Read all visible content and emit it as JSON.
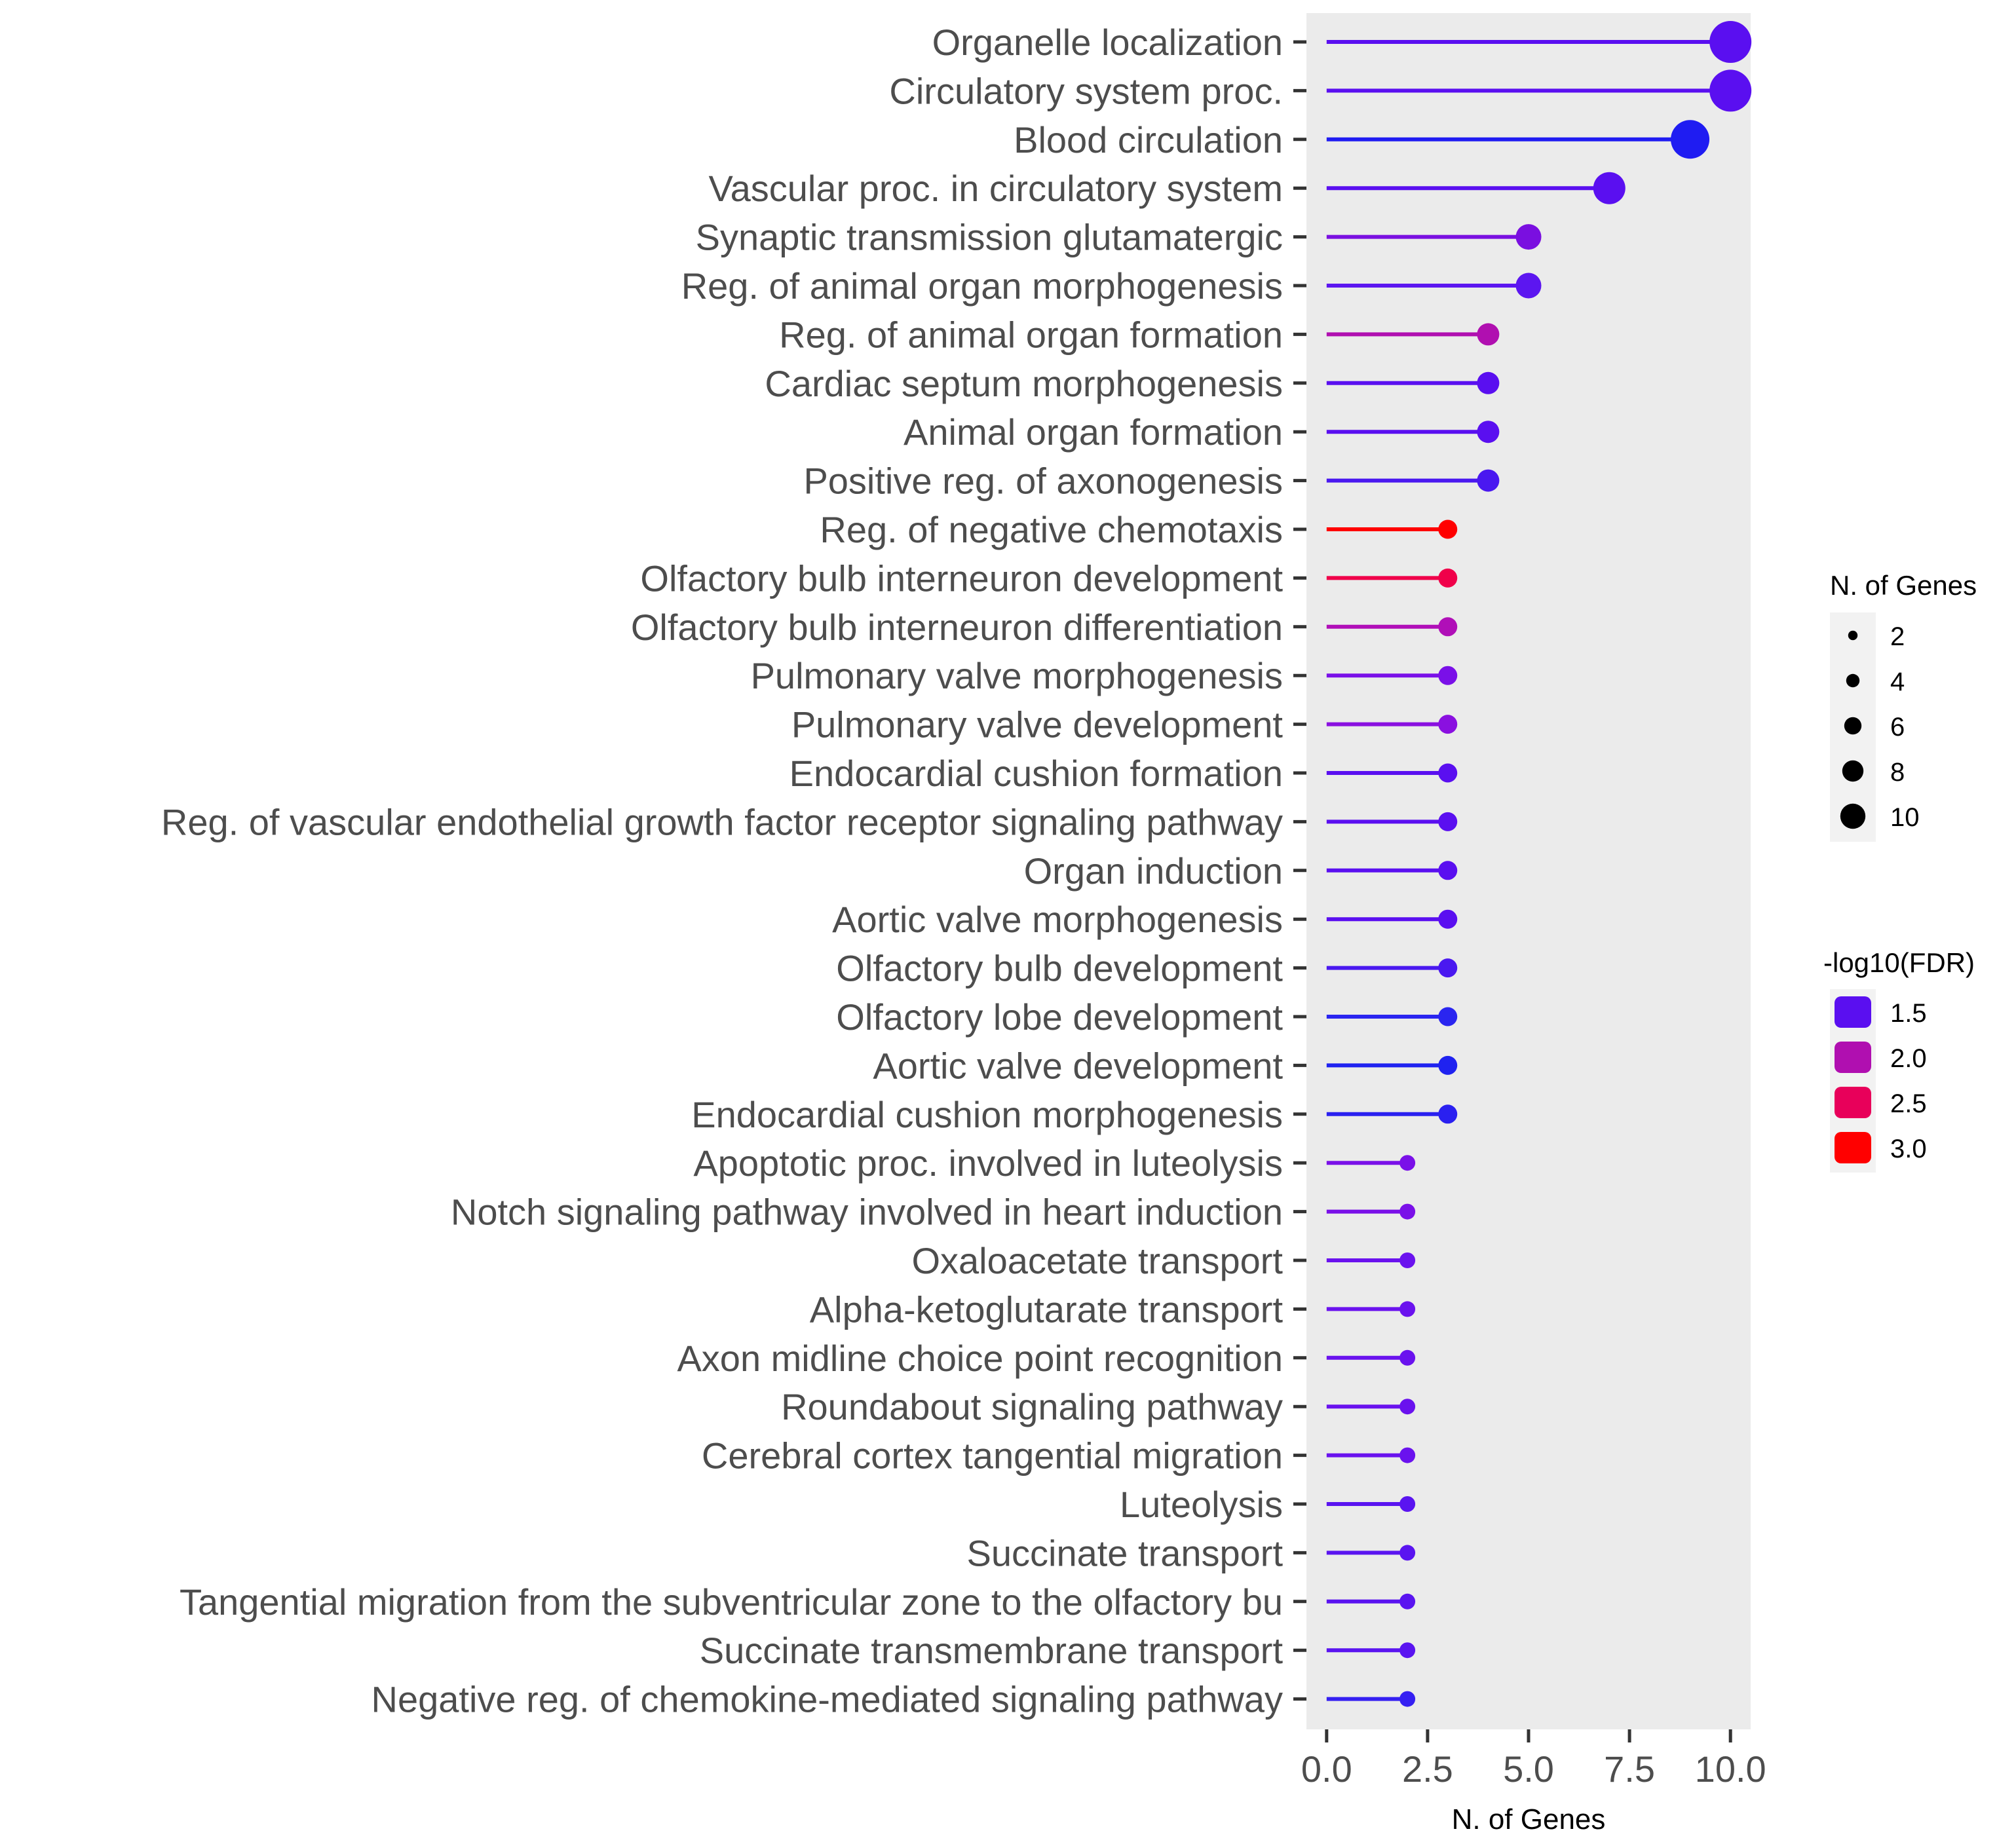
{
  "chart_data": {
    "type": "lollipop",
    "xlabel": "N. of Genes",
    "ylabel": "",
    "xlim": [
      -0.5,
      10.5
    ],
    "xticks": [
      0,
      2.5,
      5,
      7.5,
      10
    ],
    "xtick_labels": [
      "0.0",
      "2.5",
      "5.0",
      "7.5",
      "10.0"
    ],
    "categories": [
      "Organelle localization",
      "Circulatory system proc.",
      "Blood circulation",
      "Vascular proc. in circulatory system",
      "Synaptic transmission glutamatergic",
      "Reg. of animal organ morphogenesis",
      "Reg. of animal organ formation",
      "Cardiac septum morphogenesis",
      "Animal organ formation",
      "Positive reg. of axonogenesis",
      "Reg. of negative chemotaxis",
      "Olfactory bulb interneuron development",
      "Olfactory bulb interneuron differentiation",
      "Pulmonary valve morphogenesis",
      "Pulmonary valve development",
      "Endocardial cushion formation",
      "Reg. of vascular endothelial growth factor receptor signaling pathway",
      "Organ induction",
      "Aortic valve morphogenesis",
      "Olfactory bulb development",
      "Olfactory lobe development",
      "Aortic valve development",
      "Endocardial cushion morphogenesis",
      "Apoptotic proc. involved in luteolysis",
      "Notch signaling pathway involved in heart induction",
      "Oxaloacetate transport",
      "Alpha-ketoglutarate transport",
      "Axon midline choice point recognition",
      "Roundabout signaling pathway",
      "Cerebral cortex tangential migration",
      "Luteolysis",
      "Succinate transport",
      "Tangential migration from the subventricular zone to the olfactory bu",
      "Succinate transmembrane transport",
      "Negative reg. of chemokine-mediated signaling pathway"
    ],
    "values": [
      10,
      10,
      9,
      7,
      5,
      5,
      4,
      4,
      4,
      4,
      3,
      3,
      3,
      3,
      3,
      3,
      3,
      3,
      3,
      3,
      3,
      3,
      3,
      2,
      2,
      2,
      2,
      2,
      2,
      2,
      2,
      2,
      2,
      2,
      2
    ],
    "colors": [
      "#5a0ff0",
      "#5a0ff0",
      "#1f1cf2",
      "#5a0ff0",
      "#7a0fe0",
      "#5c16f0",
      "#b00fb0",
      "#5a0ff0",
      "#5a0ff0",
      "#4a18f0",
      "#ff0000",
      "#f0004a",
      "#b00fb8",
      "#7a10e8",
      "#8a10e0",
      "#5a0ff0",
      "#5a0ff0",
      "#5a0ff0",
      "#5a0ff0",
      "#4a18f0",
      "#2a25f0",
      "#1f22f0",
      "#2a20f0",
      "#7a10e8",
      "#7a10e8",
      "#6a12ee",
      "#6a12ee",
      "#6a12ee",
      "#6a12ee",
      "#6a12ee",
      "#5a14f0",
      "#5a14f0",
      "#5a14f0",
      "#5a14f0",
      "#3520f2"
    ],
    "size_legend": {
      "title": "N. of Genes",
      "values": [
        2,
        4,
        6,
        8,
        10
      ],
      "labels": [
        "2",
        "4",
        "6",
        "8",
        "10"
      ]
    },
    "color_legend": {
      "title": "-log10(FDR)",
      "values": [
        1.5,
        2.0,
        2.5,
        3.0
      ],
      "labels": [
        "1.5",
        "2.0",
        "2.5",
        "3.0"
      ],
      "colors": [
        "#5a0ff0",
        "#b00fb0",
        "#e8005a",
        "#ff0000"
      ]
    },
    "legend_position": "right",
    "grid": false,
    "panel_background": "#ebebeb"
  }
}
